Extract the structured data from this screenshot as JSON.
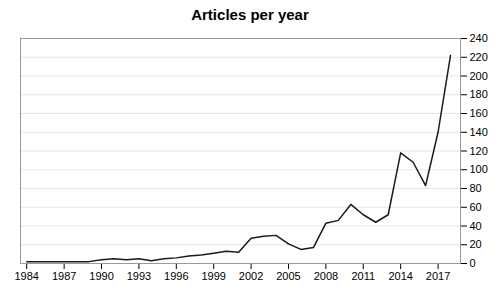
{
  "chart_data": {
    "type": "line",
    "title": "Articles per year",
    "x": [
      1984,
      1985,
      1986,
      1987,
      1988,
      1989,
      1990,
      1991,
      1992,
      1993,
      1994,
      1995,
      1996,
      1997,
      1998,
      1999,
      2000,
      2001,
      2002,
      2003,
      2004,
      2005,
      2006,
      2007,
      2008,
      2009,
      2010,
      2011,
      2012,
      2013,
      2014,
      2015,
      2016,
      2017,
      2018
    ],
    "values": [
      2,
      2,
      2,
      2,
      2,
      2,
      4,
      5,
      4,
      5,
      3,
      5,
      6,
      8,
      9,
      11,
      13,
      12,
      27,
      29,
      30,
      21,
      15,
      17,
      43,
      46,
      63,
      52,
      44,
      52,
      118,
      108,
      83,
      140,
      222
    ],
    "color": "#1a1a1a",
    "xlim": [
      1983.5,
      2018.8
    ],
    "xticks": [
      1984,
      1987,
      1990,
      1993,
      1996,
      1999,
      2002,
      2005,
      2008,
      2011,
      2014,
      2017
    ],
    "ylim": [
      0,
      240
    ],
    "yticks": [
      0,
      20,
      40,
      60,
      80,
      100,
      120,
      140,
      160,
      180,
      200,
      220,
      240
    ],
    "grid": true
  }
}
